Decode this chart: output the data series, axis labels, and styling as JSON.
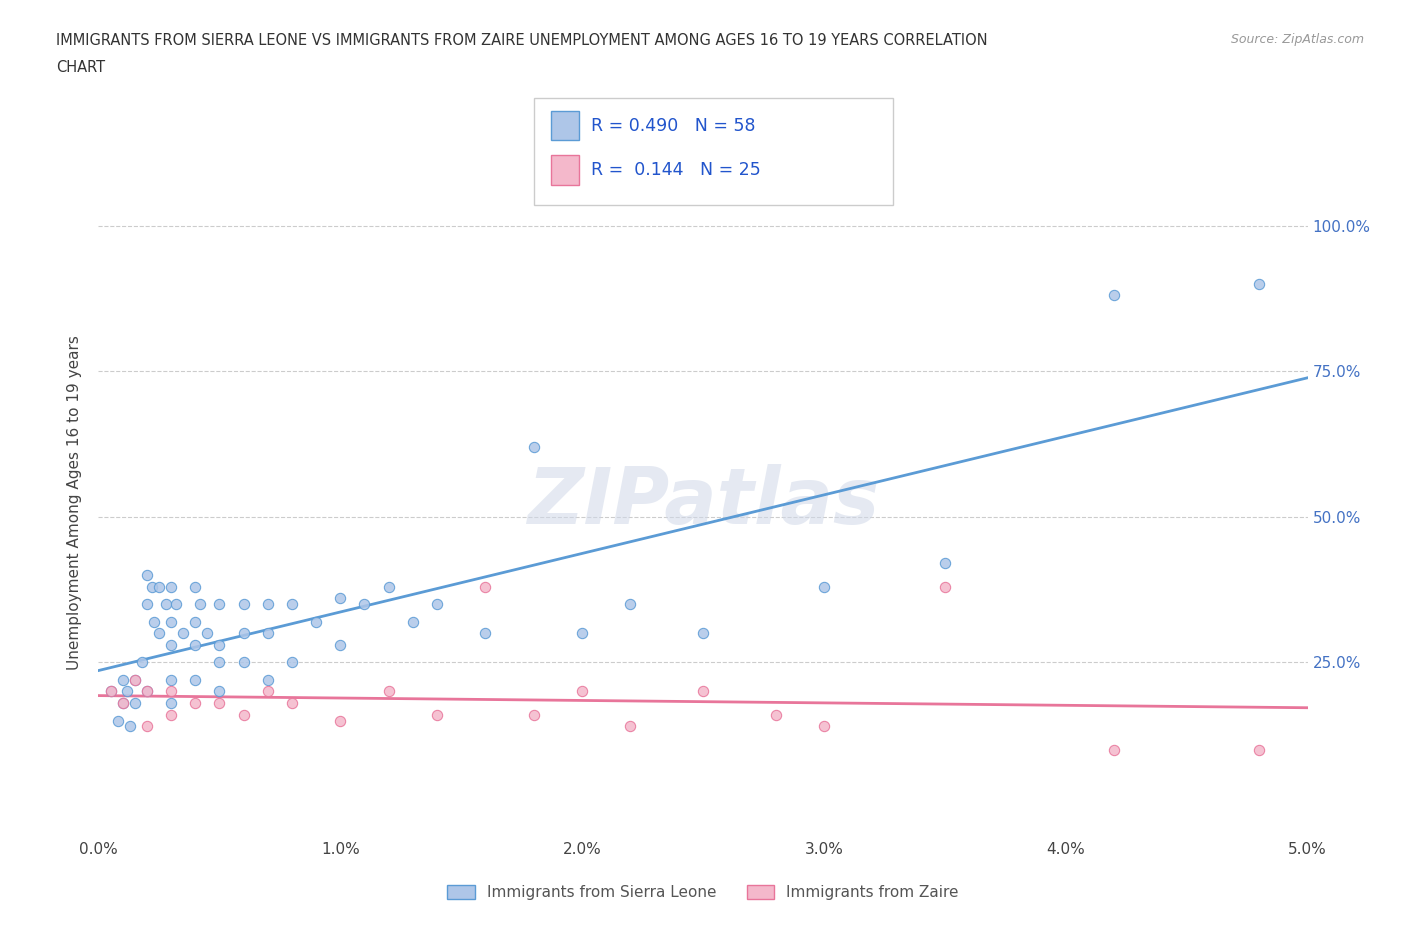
{
  "title_line1": "IMMIGRANTS FROM SIERRA LEONE VS IMMIGRANTS FROM ZAIRE UNEMPLOYMENT AMONG AGES 16 TO 19 YEARS CORRELATION",
  "title_line2": "CHART",
  "source": "Source: ZipAtlas.com",
  "ylabel": "Unemployment Among Ages 16 to 19 years",
  "xlim": [
    0.0,
    0.05
  ],
  "ylim": [
    -0.05,
    1.1
  ],
  "xtick_labels": [
    "0.0%",
    "1.0%",
    "2.0%",
    "3.0%",
    "4.0%",
    "5.0%"
  ],
  "xtick_vals": [
    0.0,
    0.01,
    0.02,
    0.03,
    0.04,
    0.05
  ],
  "ytick_labels": [
    "25.0%",
    "50.0%",
    "75.0%",
    "100.0%"
  ],
  "ytick_vals": [
    0.25,
    0.5,
    0.75,
    1.0
  ],
  "sl_color": "#aec6e8",
  "zaire_color": "#f4b8cb",
  "sl_edge_color": "#5b9bd5",
  "zaire_edge_color": "#e8759a",
  "sl_line_color": "#5b9bd5",
  "zaire_line_color": "#e8759a",
  "sl_R": 0.49,
  "sl_N": 58,
  "zaire_R": 0.144,
  "zaire_N": 25,
  "legend_label_sl": "Immigrants from Sierra Leone",
  "legend_label_zaire": "Immigrants from Zaire",
  "watermark": "ZIPatlas",
  "sl_x": [
    0.0005,
    0.0008,
    0.001,
    0.001,
    0.0012,
    0.0013,
    0.0015,
    0.0015,
    0.0018,
    0.002,
    0.002,
    0.002,
    0.0022,
    0.0023,
    0.0025,
    0.0025,
    0.0028,
    0.003,
    0.003,
    0.003,
    0.003,
    0.003,
    0.0032,
    0.0035,
    0.004,
    0.004,
    0.004,
    0.004,
    0.0042,
    0.0045,
    0.005,
    0.005,
    0.005,
    0.005,
    0.006,
    0.006,
    0.006,
    0.007,
    0.007,
    0.007,
    0.008,
    0.008,
    0.009,
    0.01,
    0.01,
    0.011,
    0.012,
    0.013,
    0.014,
    0.016,
    0.018,
    0.02,
    0.022,
    0.025,
    0.03,
    0.035,
    0.042,
    0.048
  ],
  "sl_y": [
    0.2,
    0.15,
    0.22,
    0.18,
    0.2,
    0.14,
    0.22,
    0.18,
    0.25,
    0.4,
    0.35,
    0.2,
    0.38,
    0.32,
    0.38,
    0.3,
    0.35,
    0.38,
    0.32,
    0.28,
    0.22,
    0.18,
    0.35,
    0.3,
    0.38,
    0.32,
    0.28,
    0.22,
    0.35,
    0.3,
    0.35,
    0.28,
    0.25,
    0.2,
    0.35,
    0.3,
    0.25,
    0.35,
    0.3,
    0.22,
    0.35,
    0.25,
    0.32,
    0.36,
    0.28,
    0.35,
    0.38,
    0.32,
    0.35,
    0.3,
    0.62,
    0.3,
    0.35,
    0.3,
    0.38,
    0.42,
    0.88,
    0.9
  ],
  "zaire_x": [
    0.0005,
    0.001,
    0.0015,
    0.002,
    0.002,
    0.003,
    0.003,
    0.004,
    0.005,
    0.006,
    0.007,
    0.008,
    0.01,
    0.012,
    0.014,
    0.016,
    0.018,
    0.02,
    0.022,
    0.025,
    0.028,
    0.03,
    0.035,
    0.042,
    0.048
  ],
  "zaire_y": [
    0.2,
    0.18,
    0.22,
    0.2,
    0.14,
    0.2,
    0.16,
    0.18,
    0.18,
    0.16,
    0.2,
    0.18,
    0.15,
    0.2,
    0.16,
    0.38,
    0.16,
    0.2,
    0.14,
    0.2,
    0.16,
    0.14,
    0.38,
    0.1,
    0.1
  ],
  "background_color": "#ffffff",
  "grid_color": "#cccccc"
}
